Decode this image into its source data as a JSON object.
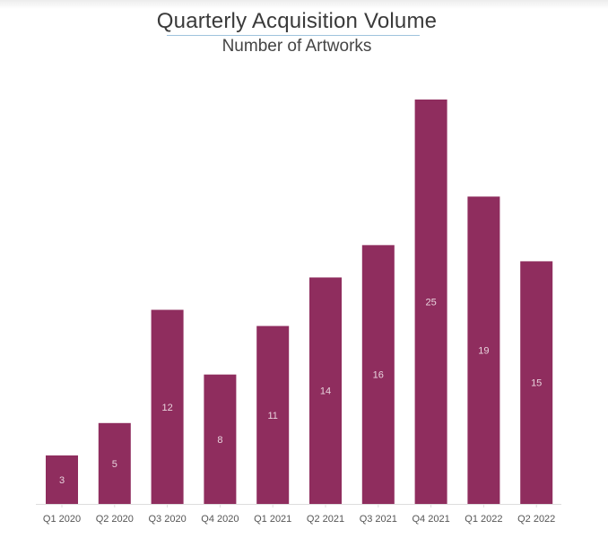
{
  "chart_data": {
    "type": "bar",
    "title": "Quarterly Acquisition Volume",
    "subtitle": "Number of Artworks",
    "xlabel": "",
    "ylabel": "",
    "categories": [
      "Q1 2020",
      "Q2 2020",
      "Q3 2020",
      "Q4 2020",
      "Q1 2021",
      "Q2 2021",
      "Q3 2021",
      "Q4 2021",
      "Q1 2022",
      "Q2 2022"
    ],
    "values": [
      3,
      5,
      12,
      8,
      11,
      14,
      16,
      25,
      19,
      15
    ],
    "value_labels": [
      "3",
      "5",
      "12",
      "8",
      "11",
      "14",
      "16",
      "25",
      "19",
      "15"
    ],
    "ylim": [
      0,
      25
    ],
    "grid": false,
    "legend": "none",
    "bar_color": "#8f2d5e",
    "label_color": "#e8d3dd",
    "tick_color": "#555555",
    "axis_color": "#dddddd"
  }
}
